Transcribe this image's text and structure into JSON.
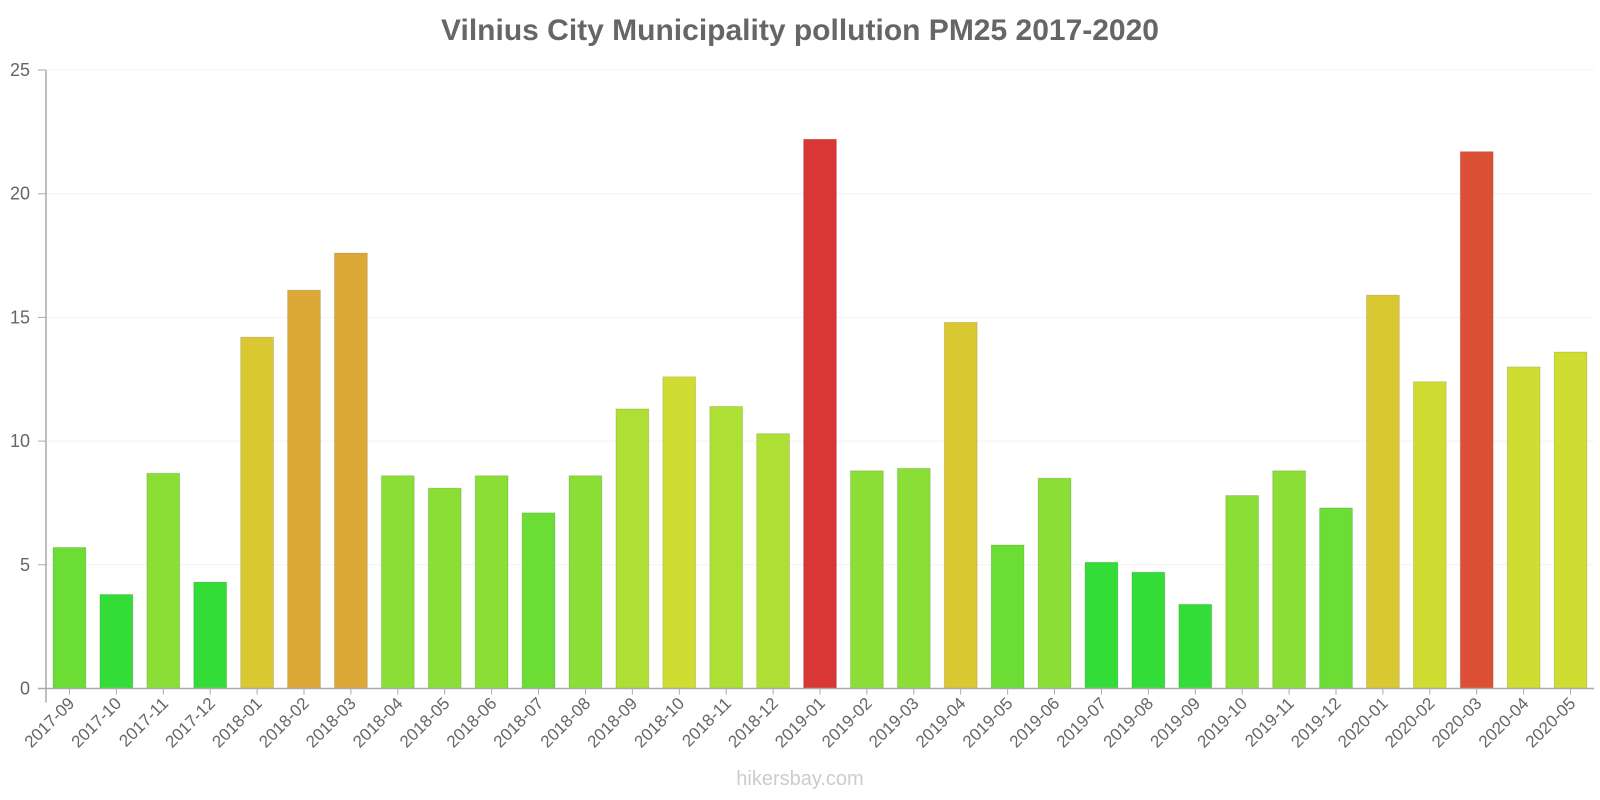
{
  "chart_data": {
    "type": "bar",
    "title": "Vilnius City Municipality pollution PM25 2017-2020",
    "xlabel": "",
    "ylabel": "",
    "ylim": [
      0,
      25
    ],
    "yticks": [
      0,
      5,
      10,
      15,
      20,
      25
    ],
    "grid": true,
    "legend": null,
    "categories": [
      "2017-09",
      "2017-10",
      "2017-11",
      "2017-12",
      "2018-01",
      "2018-02",
      "2018-03",
      "2018-04",
      "2018-05",
      "2018-06",
      "2018-07",
      "2018-08",
      "2018-09",
      "2018-10",
      "2018-11",
      "2018-12",
      "2019-01",
      "2019-02",
      "2019-03",
      "2019-04",
      "2019-05",
      "2019-06",
      "2019-07",
      "2019-08",
      "2019-09",
      "2019-10",
      "2019-11",
      "2019-12",
      "2020-01",
      "2020-02",
      "2020-03",
      "2020-04",
      "2020-05"
    ],
    "values": [
      5.7,
      3.8,
      8.7,
      4.3,
      14.2,
      16.1,
      17.6,
      8.6,
      8.1,
      8.6,
      7.1,
      8.6,
      11.3,
      12.6,
      11.4,
      10.3,
      22.2,
      8.8,
      8.9,
      14.8,
      5.8,
      8.5,
      5.1,
      4.7,
      3.4,
      7.8,
      8.8,
      7.3,
      15.9,
      12.4,
      21.7,
      13.0,
      13.6
    ],
    "colors": [
      "#6bdd35",
      "#34dc37",
      "#8ade35",
      "#34dc37",
      "#dac832",
      "#dca836",
      "#dca836",
      "#8ade35",
      "#8ade35",
      "#8ade35",
      "#6bdd35",
      "#8ade35",
      "#addf35",
      "#cfdd32",
      "#addf35",
      "#addf35",
      "#d93636",
      "#8ade35",
      "#8ade35",
      "#dac832",
      "#6bdd35",
      "#8ade35",
      "#34dc37",
      "#34dc37",
      "#34dc37",
      "#8ade35",
      "#8ade35",
      "#6bdd35",
      "#dac832",
      "#cfdd32",
      "#dc5035",
      "#cfdd32",
      "#cfdd32"
    ]
  },
  "watermark": "hikersbay.com",
  "style": {
    "text_color": "#666666",
    "axis_color": "#aaaaaa",
    "grid_color": "#f2f2f2"
  }
}
